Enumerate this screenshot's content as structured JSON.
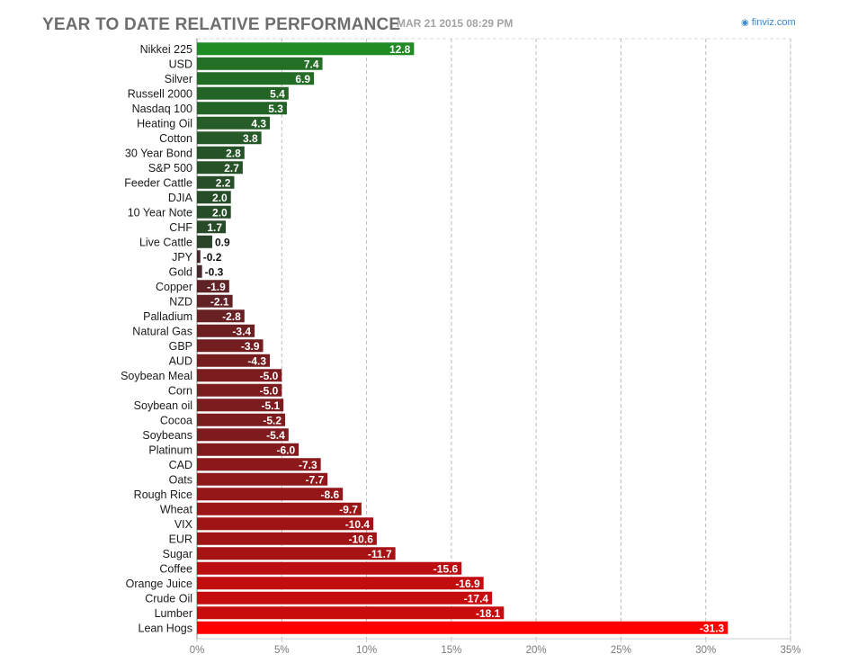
{
  "header": {
    "title": "YEAR TO DATE RELATIVE PERFORMANCE",
    "timestamp": "MAR 21 2015 08:29 PM",
    "brand": "finviz.com",
    "brand_icon": "finviz-logo-icon"
  },
  "colors": {
    "positive_max": "#1e8c23",
    "positive_min": "#2a3a2a",
    "negative_min": "#3a2a2e",
    "negative_max": "#ff0000",
    "grid": "#bbbbbb",
    "axis": "#cccccc"
  },
  "chart_data": {
    "type": "bar",
    "orientation": "horizontal",
    "title": "YEAR TO DATE RELATIVE PERFORMANCE",
    "xlabel": "",
    "ylabel": "",
    "xlim": [
      0,
      35
    ],
    "x_is_absolute_value": true,
    "grid": true,
    "categories": [
      "Nikkei 225",
      "USD",
      "Silver",
      "Russell 2000",
      "Nasdaq 100",
      "Heating Oil",
      "Cotton",
      "30 Year Bond",
      "S&P 500",
      "Feeder Cattle",
      "DJIA",
      "10 Year Note",
      "CHF",
      "Live Cattle",
      "JPY",
      "Gold",
      "Copper",
      "NZD",
      "Palladium",
      "Natural Gas",
      "GBP",
      "AUD",
      "Soybean Meal",
      "Corn",
      "Soybean oil",
      "Cocoa",
      "Soybeans",
      "Platinum",
      "CAD",
      "Oats",
      "Rough Rice",
      "Wheat",
      "VIX",
      "EUR",
      "Sugar",
      "Coffee",
      "Orange Juice",
      "Crude Oil",
      "Lumber",
      "Lean Hogs"
    ],
    "values": [
      12.8,
      7.4,
      6.9,
      5.4,
      5.3,
      4.3,
      3.8,
      2.8,
      2.7,
      2.2,
      2.0,
      2.0,
      1.7,
      0.9,
      -0.2,
      -0.3,
      -1.9,
      -2.1,
      -2.8,
      -3.4,
      -3.9,
      -4.3,
      -5.0,
      -5.0,
      -5.1,
      -5.2,
      -5.4,
      -6.0,
      -7.3,
      -7.7,
      -8.6,
      -9.7,
      -10.4,
      -10.6,
      -11.7,
      -15.6,
      -16.9,
      -17.4,
      -18.1,
      -31.3
    ],
    "value_labels": [
      "12.8",
      "7.4",
      "6.9",
      "5.4",
      "5.3",
      "4.3",
      "3.8",
      "2.8",
      "2.7",
      "2.2",
      "2.0",
      "2.0",
      "1.7",
      "0.9",
      "-0.2",
      "-0.3",
      "-1.9",
      "-2.1",
      "-2.8",
      "-3.4",
      "-3.9",
      "-4.3",
      "-5.0",
      "-5.0",
      "-5.1",
      "-5.2",
      "-5.4",
      "-6.0",
      "-7.3",
      "-7.7",
      "-8.6",
      "-9.7",
      "-10.4",
      "-10.6",
      "-11.7",
      "-15.6",
      "-16.9",
      "-17.4",
      "-18.1",
      "-31.3"
    ],
    "x_ticks": [
      0,
      5,
      10,
      15,
      20,
      25,
      30,
      35
    ],
    "x_tick_labels": [
      "0%",
      "5%",
      "10%",
      "15%",
      "20%",
      "25%",
      "30%",
      "35%"
    ]
  }
}
